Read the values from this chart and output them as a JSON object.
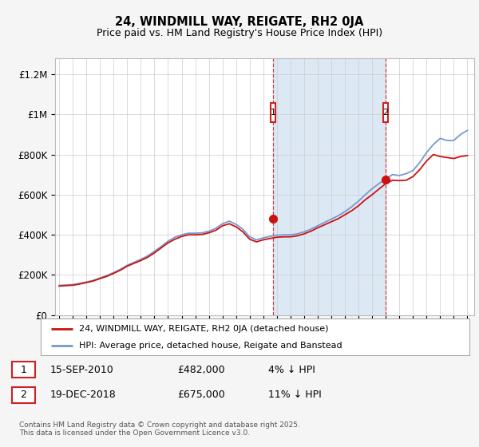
{
  "title": "24, WINDMILL WAY, REIGATE, RH2 0JA",
  "subtitle": "Price paid vs. HM Land Registry's House Price Index (HPI)",
  "ylabel_ticks": [
    "£0",
    "£200K",
    "£400K",
    "£600K",
    "£800K",
    "£1M",
    "£1.2M"
  ],
  "ytick_values": [
    0,
    200000,
    400000,
    600000,
    800000,
    1000000,
    1200000
  ],
  "ylim": [
    0,
    1280000
  ],
  "xlim_start": 1994.7,
  "xlim_end": 2025.5,
  "hpi_color": "#7799cc",
  "price_color": "#cc1111",
  "sale1_x": 2010.71,
  "sale1_y": 482000,
  "sale1_label": "1",
  "sale2_x": 2018.97,
  "sale2_y": 675000,
  "sale2_label": "2",
  "shade_color": "#dde8f5",
  "dashed_color": "#cc2222",
  "legend_label1": "24, WINDMILL WAY, REIGATE, RH2 0JA (detached house)",
  "legend_label2": "HPI: Average price, detached house, Reigate and Banstead",
  "annotation1_date": "15-SEP-2010",
  "annotation1_price": "£482,000",
  "annotation1_pct": "4% ↓ HPI",
  "annotation2_date": "19-DEC-2018",
  "annotation2_price": "£675,000",
  "annotation2_pct": "11% ↓ HPI",
  "footer": "Contains HM Land Registry data © Crown copyright and database right 2025.\nThis data is licensed under the Open Government Licence v3.0.",
  "background_color": "#f5f5f5",
  "plot_bg_color": "#ffffff",
  "hpi_xdata": [
    1995,
    1995.5,
    1996,
    1996.5,
    1997,
    1997.5,
    1998,
    1998.5,
    1999,
    1999.5,
    2000,
    2000.5,
    2001,
    2001.5,
    2002,
    2002.5,
    2003,
    2003.5,
    2004,
    2004.5,
    2005,
    2005.5,
    2006,
    2006.5,
    2007,
    2007.5,
    2008,
    2008.5,
    2009,
    2009.5,
    2010,
    2010.5,
    2011,
    2011.5,
    2012,
    2012.5,
    2013,
    2013.5,
    2014,
    2014.5,
    2015,
    2015.5,
    2016,
    2016.5,
    2017,
    2017.5,
    2018,
    2018.5,
    2019,
    2019.5,
    2020,
    2020.5,
    2021,
    2021.5,
    2022,
    2022.5,
    2023,
    2023.5,
    2024,
    2024.5,
    2025
  ],
  "hpi_ydata": [
    148000,
    150000,
    152000,
    158000,
    165000,
    173000,
    185000,
    197000,
    212000,
    228000,
    248000,
    263000,
    278000,
    295000,
    318000,
    342000,
    368000,
    388000,
    400000,
    408000,
    408000,
    410000,
    418000,
    432000,
    455000,
    468000,
    452000,
    428000,
    390000,
    375000,
    385000,
    392000,
    398000,
    400000,
    400000,
    405000,
    415000,
    428000,
    445000,
    462000,
    478000,
    495000,
    515000,
    540000,
    568000,
    600000,
    630000,
    655000,
    680000,
    700000,
    695000,
    705000,
    720000,
    760000,
    810000,
    850000,
    880000,
    870000,
    870000,
    900000,
    920000
  ],
  "price_xdata": [
    1995,
    1995.5,
    1996,
    1996.5,
    1997,
    1997.5,
    1998,
    1998.5,
    1999,
    1999.5,
    2000,
    2000.5,
    2001,
    2001.5,
    2002,
    2002.5,
    2003,
    2003.5,
    2004,
    2004.5,
    2005,
    2005.5,
    2006,
    2006.5,
    2007,
    2007.5,
    2008,
    2008.5,
    2009,
    2009.5,
    2010,
    2010.5,
    2011,
    2011.5,
    2012,
    2012.5,
    2013,
    2013.5,
    2014,
    2014.5,
    2015,
    2015.5,
    2016,
    2016.5,
    2017,
    2017.5,
    2018,
    2018.5,
    2019,
    2019.5,
    2020,
    2020.5,
    2021,
    2021.5,
    2022,
    2022.5,
    2023,
    2023.5,
    2024,
    2024.5,
    2025
  ],
  "price_ydata": [
    145000,
    147000,
    149000,
    155000,
    162000,
    170000,
    182000,
    193000,
    208000,
    224000,
    244000,
    258000,
    272000,
    288000,
    310000,
    335000,
    360000,
    378000,
    392000,
    400000,
    400000,
    402000,
    410000,
    422000,
    445000,
    455000,
    440000,
    415000,
    378000,
    365000,
    375000,
    382000,
    388000,
    390000,
    390000,
    395000,
    405000,
    418000,
    435000,
    450000,
    465000,
    480000,
    500000,
    520000,
    545000,
    575000,
    600000,
    628000,
    655000,
    672000,
    670000,
    672000,
    690000,
    725000,
    768000,
    800000,
    790000,
    785000,
    780000,
    790000,
    795000
  ]
}
